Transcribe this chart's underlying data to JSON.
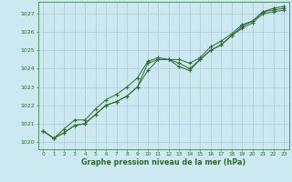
{
  "hours": [
    0,
    1,
    2,
    3,
    4,
    5,
    6,
    7,
    8,
    9,
    10,
    11,
    12,
    13,
    14,
    15,
    16,
    17,
    18,
    19,
    20,
    21,
    22,
    23
  ],
  "line1": [
    1020.6,
    1020.2,
    1020.5,
    1020.9,
    1021.0,
    1021.5,
    1022.0,
    1022.2,
    1022.5,
    1023.0,
    1023.9,
    1024.5,
    1024.5,
    1024.3,
    1024.0,
    1024.5,
    1025.0,
    1025.3,
    1025.8,
    1026.3,
    1026.6,
    1027.1,
    1027.2,
    1027.3
  ],
  "line2": [
    1020.6,
    1020.2,
    1020.7,
    1021.2,
    1021.2,
    1021.8,
    1022.3,
    1022.6,
    1023.0,
    1023.5,
    1024.4,
    1024.6,
    1024.5,
    1024.5,
    1024.3,
    1024.6,
    1025.2,
    1025.5,
    1025.9,
    1026.4,
    1026.6,
    1027.1,
    1027.3,
    1027.4
  ],
  "line3": [
    1020.6,
    1020.2,
    1020.5,
    1020.9,
    1021.0,
    1021.5,
    1022.0,
    1022.2,
    1022.5,
    1023.0,
    1024.3,
    1024.5,
    1024.5,
    1024.1,
    1023.9,
    1024.5,
    1025.0,
    1025.3,
    1025.8,
    1026.2,
    1026.5,
    1027.0,
    1027.1,
    1027.2
  ],
  "bg_color": "#cce8f0",
  "grid_color": "#aaccdd",
  "line_color": "#2d6a2d",
  "marker": "+",
  "ylabel_values": [
    1020,
    1021,
    1022,
    1023,
    1024,
    1025,
    1026,
    1027
  ],
  "ylim": [
    1019.6,
    1027.65
  ],
  "xlim": [
    -0.5,
    23.5
  ],
  "xlabel": "Graphe pression niveau de la mer (hPa)",
  "xlabel_color": "#2d6a2d",
  "tick_color": "#2d6a2d",
  "tick_fontsize": 4.2,
  "xlabel_fontsize": 5.8,
  "xlabel_fontweight": "bold"
}
